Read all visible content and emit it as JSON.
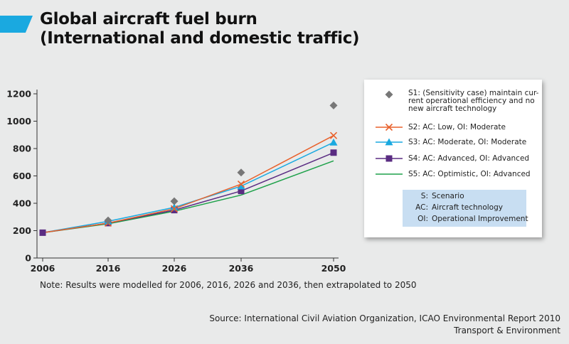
{
  "title": {
    "line1": "Global aircraft fuel burn",
    "line2": "(International and domestic traffic)"
  },
  "chart_data": {
    "type": "line",
    "title": "Global aircraft fuel burn (International and domestic traffic)",
    "x": [
      "2006",
      "2016",
      "2026",
      "2036",
      "2050"
    ],
    "ylim": [
      0,
      1200
    ],
    "yticks": [
      0,
      200,
      400,
      600,
      800,
      1000,
      1200
    ],
    "grid": false,
    "legend_position": "right",
    "series": [
      {
        "name": "S1: (Sensitivity case) maintain cur-rent operational efficiency and no new aircraft technology",
        "legend_lines": [
          "S1: (Sensitivity case) maintain cur-",
          "rent operational efficiency and no",
          "new aircraft technology"
        ],
        "values": [
          null,
          275,
          415,
          625,
          1115
        ],
        "color": "#777777",
        "marker": "diamond",
        "line": false
      },
      {
        "name": "S2: AC: Low, OI: Moderate",
        "values": [
          185,
          255,
          360,
          540,
          895
        ],
        "color": "#e8612c",
        "marker": "x",
        "line": true
      },
      {
        "name": "S3: AC: Moderate, OI: Moderate",
        "values": [
          185,
          268,
          370,
          525,
          845
        ],
        "color": "#1aa9e0",
        "marker": "triangle",
        "line": true
      },
      {
        "name": "S4: AC: Advanced, OI: Advanced",
        "values": [
          185,
          255,
          350,
          490,
          770
        ],
        "color": "#5a2c82",
        "marker": "square",
        "line": true
      },
      {
        "name": "S5: AC: Optimistic, OI: Advanced",
        "values": [
          185,
          250,
          342,
          460,
          710
        ],
        "color": "#1ea14a",
        "marker": "none",
        "line": true
      }
    ]
  },
  "abbreviations": [
    {
      "key": "S:",
      "value": "Scenario"
    },
    {
      "key": "AC:",
      "value": "Aircraft technology"
    },
    {
      "key": "OI:",
      "value": "Operational Improvement"
    }
  ],
  "note": "Note: Results were modelled for 2006, 2016, 2026 and 2036, then extrapolated to 2050",
  "source": {
    "line1": "Source: International Civil Aviation Organization, ICAO Environmental Report 2010",
    "line2": "Transport & Environment"
  },
  "colors": {
    "accent": "#1aa9e0",
    "background": "#e9eaea"
  }
}
